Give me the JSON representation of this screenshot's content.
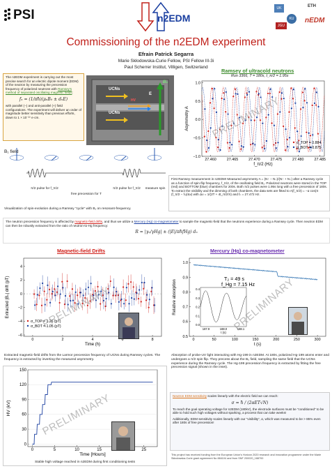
{
  "header": {
    "psi_logo": "PSI",
    "center_logo": "n2EDM",
    "title": "Commissioning of the n2EDM experiment",
    "author": "Efrain Patrick Segarra",
    "affiliation1": "Marie Skłodowska-Curie Fellow, PSI Fellow III-3i",
    "affiliation2": "Paul Scherrer Institut, Villigen, Switzerland",
    "partner_logos": [
      "UK",
      "ETH",
      "nEDM",
      "KU",
      "JGU"
    ]
  },
  "intro": {
    "text_a": "The n2EDM experiment is carrying out the most precise search for an electric dipole moment (EDM) of the neutron by measuring the precession frequency of polarized neutrons with ",
    "link": "Ramsey's method of separated oscillating magnetic fields",
    "text_b": ":",
    "equation": "fₙ = (1/πħ)(μₙB₀ ± dₙE)",
    "text_c": "with parallel (−) and anti-parallel (+) field configurations. The experiment will deliver an order of magnitude better sensitivity than previous efforts, down to 1 × 10⁻²⁷ e·cm."
  },
  "apparatus": {
    "labels": [
      "UCNs",
      "UCNs",
      "B₀",
      "E",
      "HV"
    ]
  },
  "ramsey_chart": {
    "heading": "Ramsey of ultracold neutrons",
    "run_info": "Run 3366, T = 180s, t_π/2 = 1.95s",
    "caption": "First Ramsey measurement in n2EDM! Measured asymmetry A = (N↑ − N↓)/(N↑ + N↓) after a Ramsey cycle as a function of spin-flip frequency, f_π/2, of the oscillating field B₁. Polarized neutrons were stored in the TOP (red) and BOTTOM (blue) chambers for 200s. Both π/2 pulses were 1.95s long with a free precession of 180s. To extract the visibility and the dimming of both chambers, the data sets are fitted to A(f_π/2) = −α cos(π (f_π/2 − fₙ)/Δν) with Δν = 1/(2T + 4t_π/2/π) and fₙ = 27.472 Hz."
  },
  "chart_data": [
    {
      "type": "scatter",
      "title": "",
      "xlabel": "f_π/2 (Hz)",
      "ylabel": "Asymmetry A",
      "xlim": [
        27.458,
        27.486
      ],
      "ylim": [
        -1.0,
        1.05
      ],
      "xticks": [
        "27.460",
        "27.465",
        "27.470",
        "27.475",
        "27.480",
        "27.485"
      ],
      "yticks": [
        "−1.0",
        "−0.5",
        "0.0",
        "0.5",
        "1.0"
      ],
      "fringe_period_hz": 0.0026,
      "series": [
        {
          "name": "α_TOP = 0.884",
          "color": "#d0201a",
          "amplitude": 0.884,
          "phase_hz": 27.472
        },
        {
          "name": "α_BOT = 0.875",
          "color": "#1a3fa0",
          "amplitude": 0.875,
          "phase_hz": 27.4725
        }
      ],
      "legend": "bottom-right"
    },
    {
      "type": "scatter",
      "title": "Magnetic-field Drifts",
      "xlabel": "Time (h)",
      "ylabel": "Extracted |B₀| drift (pT)",
      "xlim": [
        -0.6,
        8.6
      ],
      "ylim": [
        -6.2,
        5.2
      ],
      "xticks": [
        "0",
        "2",
        "4",
        "6",
        "8"
      ],
      "yticks": [
        "−6",
        "−4",
        "−2",
        "0",
        "2",
        "4"
      ],
      "series": [
        {
          "name": "σ_TOP = 1.26 (pT)",
          "color": "#d0201a",
          "sigma": 1.26
        },
        {
          "name": "σ_BOT = 1.05 (pT)",
          "color": "#1a3fa0",
          "sigma": 1.05
        }
      ],
      "legend": "bottom-left"
    },
    {
      "type": "line",
      "title": "Mercury (Hg) co-magnetometer",
      "xlabel": "t (s)",
      "ylabel": "Relative absorption",
      "xlim": [
        -10,
        320
      ],
      "ylim": [
        0.5,
        1.03
      ],
      "xticks": [
        "0",
        "50",
        "100",
        "150",
        "200",
        "250",
        "300"
      ],
      "yticks": [
        "0.5",
        "0.6",
        "0.7",
        "0.8",
        "0.9",
        "1.0"
      ],
      "series": [
        {
          "name": "Hg absorption",
          "color": "#2a6fb0",
          "x": [
            0,
            100,
            200,
            300
          ],
          "y": [
            0.985,
            0.965,
            0.94,
            0.915
          ],
          "drop_at": 204,
          "drop_to": 0.88
        }
      ],
      "inset": {
        "label_t2": "T₂ = 49 s",
        "label_f": "f_Hg = 7.15 Hz",
        "xticks": [
          "187.9",
          "188.0",
          "188.1"
        ],
        "xlabel": "t (s)",
        "yticks": [
          "0.0",
          "0.1",
          "0.2",
          "0.3",
          "0.4"
        ],
        "frequency_hz": 7.15
      }
    },
    {
      "type": "line",
      "title": "",
      "xlabel": "Time [Hours]",
      "ylabel": "HV (kV)",
      "xlim": [
        -1,
        28
      ],
      "ylim": [
        -5,
        150
      ],
      "xticks": [
        "0",
        "5",
        "10",
        "15",
        "20",
        "25"
      ],
      "yticks": [
        "0",
        "30",
        "60",
        "90",
        "120",
        "150"
      ],
      "series": [
        {
          "name": "HV",
          "color": "#1a3fa0",
          "x": [
            0,
            0.4,
            0.5,
            1.0,
            1.1,
            1.6,
            1.7,
            2.2,
            2.3,
            2.8,
            2.9,
            3.4,
            3.5,
            4.2,
            4.3,
            27
          ],
          "y": [
            0,
            0,
            20,
            20,
            40,
            40,
            60,
            60,
            80,
            80,
            100,
            100,
            120,
            120,
            125,
            125
          ]
        }
      ]
    }
  ],
  "b1": {
    "label": "B₁ field",
    "steps": [
      "π/2 pulse for f_π/2",
      "free precession for T",
      "π/2 pulse for f_π/2",
      "measure spin"
    ],
    "caption": "Visualization of spin-evolution during a Ramsey “cycle” with B₁ on resonant-frequency."
  },
  "middle": {
    "text_a": "The neutron precession frequency is affected by ",
    "link1": "magnetic-field drifts",
    "text_b": ", and thus we utilize a ",
    "link2": "Mercury (Hg) co-magnetometer",
    "text_c": " to sample the magnetic-field that the neutrons experience during a Ramsey cycle. Then neutron EDM can then be robustly extracted from the ratio of neutron-to-Hg frequency:",
    "equation": "R = |γₙ/γHg| ± (|E|/πħfHg) dₙ"
  },
  "drift": {
    "caption": "Extracted magnetic-field drifts from the Larmor precession frequency of UCNs during Ramsey cycles. The frequency is extracted by inverting the measured asymmetry."
  },
  "mercury": {
    "caption": "Absorption of probe-UV light interacting with Hg-199 in n2EDM. At 180s, polarized Hg-199 atoms enter and undergoes a π/2 spin flip. They precess about the B₀ field, sampling the same field that the UCNs experience during the Ramsey cycle. The Hg-199 precession frequency is extracted by fitting the free precession signal (shown in the inset)."
  },
  "hv": {
    "caption": "Stable high voltage reached in n2EDM during first conditioning tests"
  },
  "sensitivity": {
    "link": "Neutron EDM sensitivity",
    "text_a": " scales linearly with the electric field we can reach:",
    "equation": "σ = ħ / (2αET√N)",
    "para1": "To reach the goal operating voltage for n2EDM (180kV), the electrode surfaces must be “conditioned” to be able to hold such high voltages without sparking, a process that can take weeks!",
    "para2": "Additionally, EDM sensitivity scales linearly with our “visibility”, α, which was measured to be > 85% even after 180s of free precession!",
    "funding": "This project has received funding from the European Union's Horizon 2020 research and innovation programme under the Marie Skłodowska-Curie grant agreement No 884104 and from SNF 200020_188700"
  },
  "watermark": "PRELIMINARY"
}
